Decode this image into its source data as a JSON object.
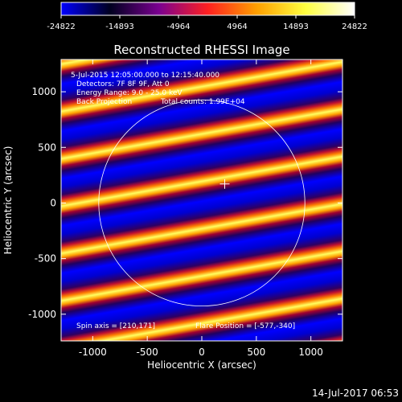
{
  "colorbar": {
    "ticks": [
      "-24822",
      "-14893",
      "-4964",
      "4964",
      "14893",
      "24822"
    ],
    "colormap": [
      "#0000ff",
      "#000020",
      "#7a0090",
      "#ff2020",
      "#ffa000",
      "#ffff40",
      "#ffffff"
    ]
  },
  "plot": {
    "title": "Reconstructed RHESSI Image",
    "xlabel": "Heliocentric X (arcsec)",
    "ylabel": "Heliocentric Y (arcsec)",
    "x_ticks": [
      "-1000",
      "-500",
      "0",
      "500",
      "1000"
    ],
    "y_ticks": [
      "-1000",
      "-500",
      "0",
      "500",
      "1000"
    ],
    "xlim": [
      -1290,
      1290
    ],
    "ylim": [
      -1240,
      1290
    ]
  },
  "annotations": {
    "time_range": "5-Jul-2015 12:05:00.000 to 12:15:40.000",
    "detectors": "Detectors: 7F 8F 9F, Att 0",
    "energy": "Energy Range: 9.0 - 25.0 keV",
    "method": "Back Projection",
    "total_counts": "Total counts: 1.99E+04",
    "spin_axis": "Spin axis = [210,171]",
    "flare_position": "Flare Position = [-577,-340]"
  },
  "footer": {
    "timestamp": "14-Jul-2017 06:53"
  }
}
